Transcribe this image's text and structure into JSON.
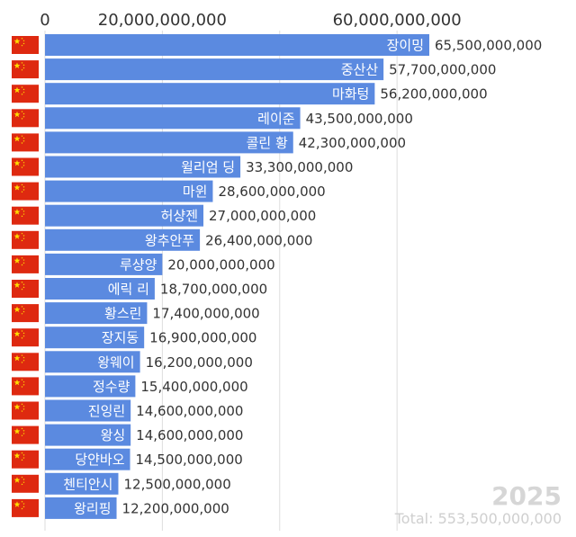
{
  "chart_data": {
    "type": "bar",
    "orientation": "horizontal",
    "year": "2025",
    "total_prefix": "Total: ",
    "total": "553,500,000,000",
    "ticks": [
      {
        "value": 0,
        "label": "0"
      },
      {
        "value": 20000000000,
        "label": "20,000,000,000"
      },
      {
        "value": 40000000000,
        "label": ""
      },
      {
        "value": 60000000000,
        "label": "60,000,000,000"
      }
    ],
    "xlim": [
      0,
      65500000000
    ],
    "bar_color": "#5b8ae0",
    "grid_color": "#dddddd",
    "flag": {
      "icon": "china-flag-icon",
      "red": "#de2910",
      "yellow": "#ffde00"
    },
    "series": [
      {
        "name": "장이밍",
        "value": 65500000000,
        "value_label": "65,500,000,000"
      },
      {
        "name": "중산산",
        "value": 57700000000,
        "value_label": "57,700,000,000"
      },
      {
        "name": "마화텅",
        "value": 56200000000,
        "value_label": "56,200,000,000"
      },
      {
        "name": "레이준",
        "value": 43500000000,
        "value_label": "43,500,000,000"
      },
      {
        "name": "콜린 황",
        "value": 42300000000,
        "value_label": "42,300,000,000"
      },
      {
        "name": "윌리엄 딩",
        "value": 33300000000,
        "value_label": "33,300,000,000"
      },
      {
        "name": "마윈",
        "value": 28600000000,
        "value_label": "28,600,000,000"
      },
      {
        "name": "허샹젠",
        "value": 27000000000,
        "value_label": "27,000,000,000"
      },
      {
        "name": "왕추안푸",
        "value": 26400000000,
        "value_label": "26,400,000,000"
      },
      {
        "name": "루샹양",
        "value": 20000000000,
        "value_label": "20,000,000,000"
      },
      {
        "name": "에릭 리",
        "value": 18700000000,
        "value_label": "18,700,000,000"
      },
      {
        "name": "황스린",
        "value": 17400000000,
        "value_label": "17,400,000,000"
      },
      {
        "name": "장지동",
        "value": 16900000000,
        "value_label": "16,900,000,000"
      },
      {
        "name": "왕웨이",
        "value": 16200000000,
        "value_label": "16,200,000,000"
      },
      {
        "name": "정수량",
        "value": 15400000000,
        "value_label": "15,400,000,000"
      },
      {
        "name": "진잉린",
        "value": 14600000000,
        "value_label": "14,600,000,000"
      },
      {
        "name": "왕싱",
        "value": 14600000000,
        "value_label": "14,600,000,000"
      },
      {
        "name": "당얀바오",
        "value": 14500000000,
        "value_label": "14,500,000,000"
      },
      {
        "name": "첸티안시",
        "value": 12500000000,
        "value_label": "12,500,000,000"
      },
      {
        "name": "왕리핑",
        "value": 12200000000,
        "value_label": "12,200,000,000"
      }
    ]
  }
}
